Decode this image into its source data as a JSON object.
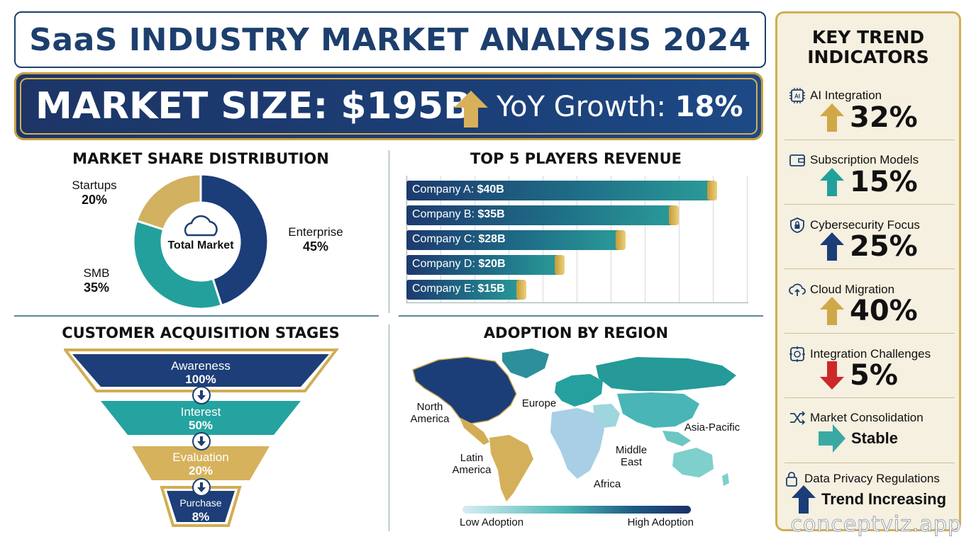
{
  "title": "SaaS INDUSTRY MARKET ANALYSIS 2024",
  "banner": {
    "market_size": "MARKET SIZE: $195B",
    "yoy_label": "YoY Growth: ",
    "yoy_value": "18%"
  },
  "market_share": {
    "title": "MARKET SHARE DISTRIBUTION",
    "center_label": "Total Market",
    "segments": [
      {
        "name": "Enterprise",
        "value": "45%",
        "pct": 45,
        "color": "#1b3d78"
      },
      {
        "name": "SMB",
        "value": "35%",
        "pct": 35,
        "color": "#23a09c"
      },
      {
        "name": "Startups",
        "value": "20%",
        "pct": 20,
        "color": "#d2b160"
      }
    ]
  },
  "top_players": {
    "title": "TOP 5 PLAYERS REVENUE",
    "bars": [
      {
        "label": "Company A: ",
        "value_text": "$40B",
        "value": 40
      },
      {
        "label": "Company B: ",
        "value_text": "$35B",
        "value": 35
      },
      {
        "label": "Company C: ",
        "value_text": "$28B",
        "value": 28
      },
      {
        "label": "Company D: ",
        "value_text": "$20B",
        "value": 20
      },
      {
        "label": "Company E: ",
        "value_text": "$15B",
        "value": 15
      }
    ]
  },
  "acquisition": {
    "title": "CUSTOMER ACQUISITION STAGES",
    "stages": [
      {
        "name": "Awareness",
        "value": "100%"
      },
      {
        "name": "Interest",
        "value": "50%"
      },
      {
        "name": "Evaluation",
        "value": "20%"
      },
      {
        "name": "Purchase",
        "value": "8%"
      }
    ]
  },
  "adoption": {
    "title": "ADOPTION BY REGION",
    "regions": {
      "north_america": "North America",
      "europe": "Europe",
      "asia_pacific": "Asia-Pacific",
      "latin_america": "Latin America",
      "middle_east": "Middle East",
      "africa": "Africa"
    },
    "legend_low": "Low Adoption",
    "legend_high": "High Adoption"
  },
  "key_trends": {
    "title": "KEY TREND INDICATORS",
    "items": [
      {
        "label": "AI Integration",
        "value": "32%",
        "icon": "ai-chip-icon",
        "arrow": "up",
        "color": "#d1a848"
      },
      {
        "label": "Subscription Models",
        "value": "15%",
        "icon": "wallet-icon",
        "arrow": "up",
        "color": "#23a09c"
      },
      {
        "label": "Cybersecurity Focus",
        "value": "25%",
        "icon": "shield-lock-icon",
        "arrow": "up",
        "color": "#1b3d78"
      },
      {
        "label": "Cloud Migration",
        "value": "40%",
        "icon": "cloud-upload-icon",
        "arrow": "up",
        "color": "#d1a848"
      },
      {
        "label": "Integration Challenges",
        "value": "5%",
        "icon": "integration-icon",
        "arrow": "down",
        "color": "#cc2a2a"
      },
      {
        "label": "Market Consolidation",
        "value": "Stable",
        "icon": "merge-arrows-icon",
        "arrow": "right",
        "color": "#3aa9a4"
      },
      {
        "label": "Data Privacy Regulations",
        "value": "Trend Increasing",
        "icon": "padlock-icon",
        "arrow": "up",
        "color": "#1b3d78"
      }
    ]
  },
  "watermark": "conceptviz.app"
}
